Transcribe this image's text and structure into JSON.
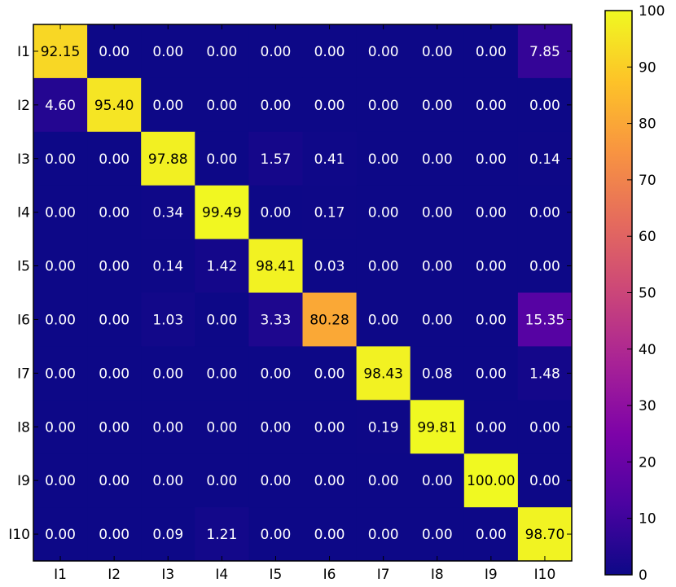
{
  "chart_data": {
    "type": "heatmap",
    "title": "",
    "xlabel": "",
    "ylabel": "",
    "x_categories": [
      "I1",
      "I2",
      "I3",
      "I4",
      "I5",
      "I6",
      "I7",
      "I8",
      "I9",
      "I10"
    ],
    "y_categories": [
      "I1",
      "I2",
      "I3",
      "I4",
      "I5",
      "I6",
      "I7",
      "I8",
      "I9",
      "I10"
    ],
    "values": [
      [
        92.15,
        0.0,
        0.0,
        0.0,
        0.0,
        0.0,
        0.0,
        0.0,
        0.0,
        7.85
      ],
      [
        4.6,
        95.4,
        0.0,
        0.0,
        0.0,
        0.0,
        0.0,
        0.0,
        0.0,
        0.0
      ],
      [
        0.0,
        0.0,
        97.88,
        0.0,
        1.57,
        0.41,
        0.0,
        0.0,
        0.0,
        0.14
      ],
      [
        0.0,
        0.0,
        0.34,
        99.49,
        0.0,
        0.17,
        0.0,
        0.0,
        0.0,
        0.0
      ],
      [
        0.0,
        0.0,
        0.14,
        1.42,
        98.41,
        0.03,
        0.0,
        0.0,
        0.0,
        0.0
      ],
      [
        0.0,
        0.0,
        1.03,
        0.0,
        3.33,
        80.28,
        0.0,
        0.0,
        0.0,
        15.35
      ],
      [
        0.0,
        0.0,
        0.0,
        0.0,
        0.0,
        0.0,
        98.43,
        0.08,
        0.0,
        1.48
      ],
      [
        0.0,
        0.0,
        0.0,
        0.0,
        0.0,
        0.0,
        0.19,
        99.81,
        0.0,
        0.0
      ],
      [
        0.0,
        0.0,
        0.0,
        0.0,
        0.0,
        0.0,
        0.0,
        0.0,
        100.0,
        0.0
      ],
      [
        0.0,
        0.0,
        0.09,
        1.21,
        0.0,
        0.0,
        0.0,
        0.0,
        0.0,
        98.7
      ]
    ],
    "value_format": "2 decimals",
    "colormap": "plasma",
    "colorbar": {
      "range": [
        0,
        100
      ],
      "ticks": [
        0,
        10,
        20,
        30,
        40,
        50,
        60,
        70,
        80,
        90,
        100
      ],
      "placement": "right"
    }
  }
}
